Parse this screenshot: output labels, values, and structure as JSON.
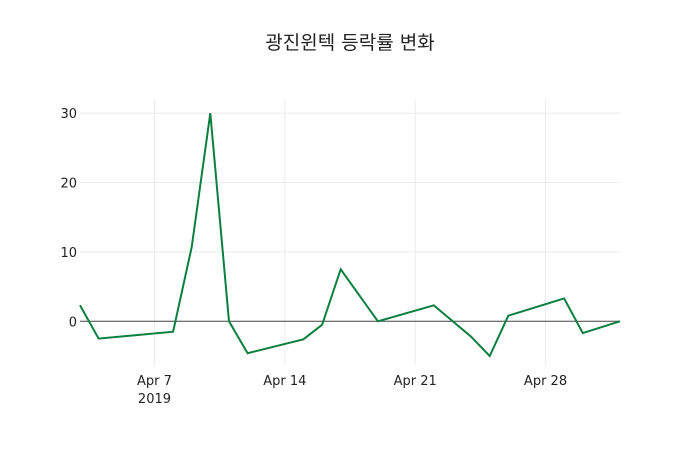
{
  "chart_data": {
    "type": "line",
    "title": "광진윈텍 등락률 변화",
    "xlabel": "",
    "ylabel": "",
    "x": [
      "2019-04-03",
      "2019-04-04",
      "2019-04-08",
      "2019-04-09",
      "2019-04-10",
      "2019-04-11",
      "2019-04-12",
      "2019-04-15",
      "2019-04-16",
      "2019-04-17",
      "2019-04-19",
      "2019-04-22",
      "2019-04-24",
      "2019-04-25",
      "2019-04-26",
      "2019-04-29",
      "2019-04-30",
      "2019-05-02"
    ],
    "series": [
      {
        "name": "등락률",
        "color": "#0a7f3f",
        "values": [
          2.3,
          -2.5,
          -1.5,
          10.7,
          30.0,
          0.0,
          -4.6,
          -2.6,
          -0.5,
          7.5,
          0.0,
          2.3,
          -2.2,
          -5.0,
          0.8,
          3.3,
          -1.7,
          0.0
        ]
      }
    ],
    "xlim": [
      "2019-04-03",
      "2019-05-02"
    ],
    "ylim": [
      -6.3,
      31.9
    ],
    "x_ticks": [
      {
        "date": "2019-04-07",
        "label": "Apr 7",
        "sublabel": "2019"
      },
      {
        "date": "2019-04-14",
        "label": "Apr 14"
      },
      {
        "date": "2019-04-21",
        "label": "Apr 21"
      },
      {
        "date": "2019-04-28",
        "label": "Apr 28"
      }
    ],
    "y_ticks": [
      0,
      10,
      20,
      30
    ],
    "grid": true,
    "zero_line": true,
    "legend": false
  }
}
